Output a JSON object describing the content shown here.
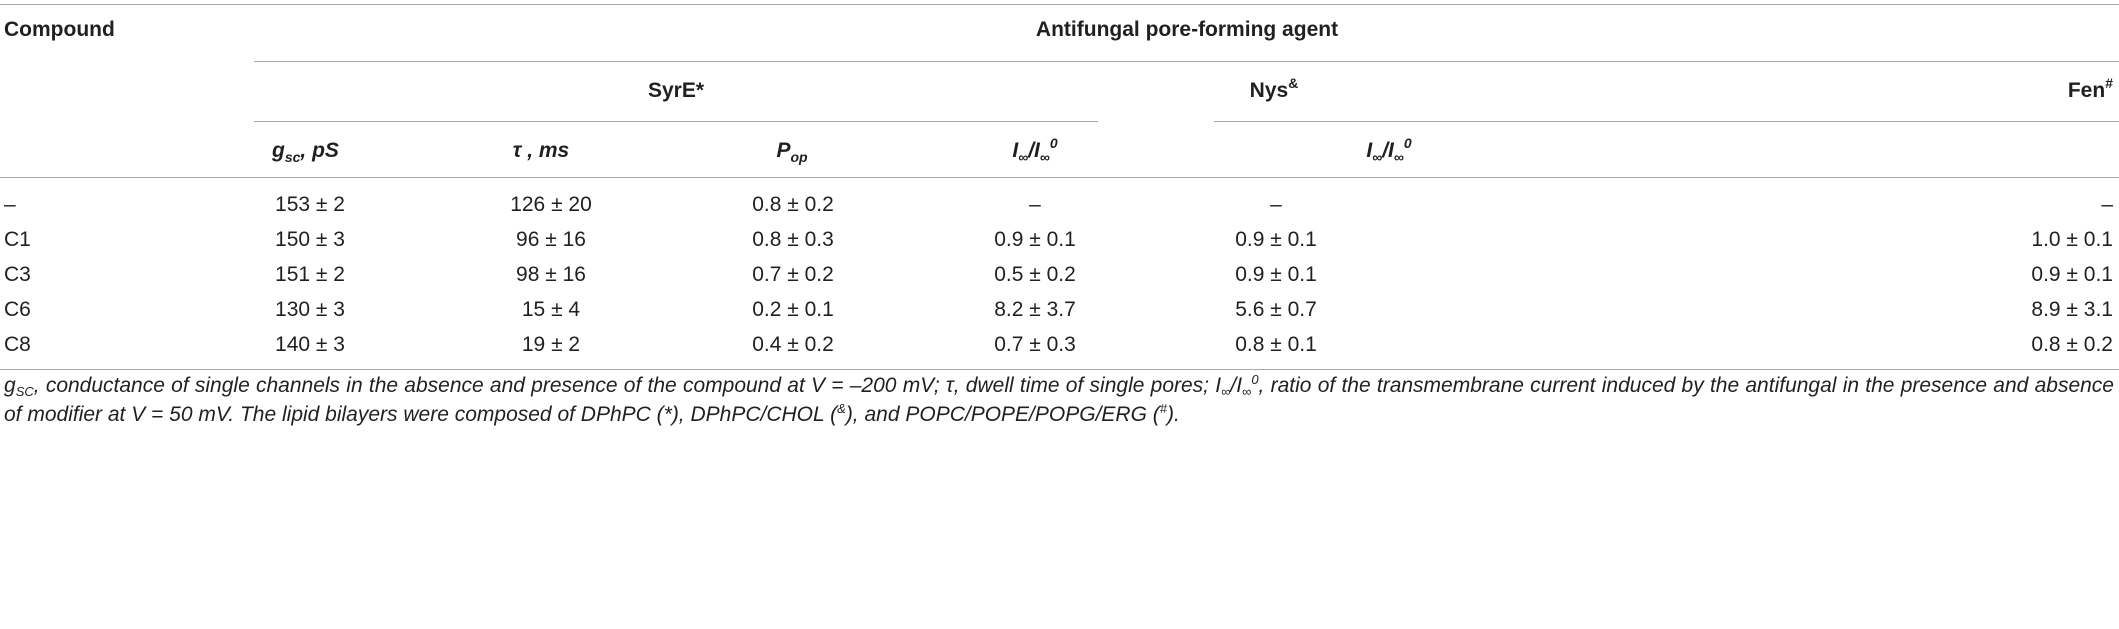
{
  "headers": {
    "compound": "Compound",
    "group": "Antifungal pore-forming agent",
    "syre": "SyrE*",
    "nys": "Nys",
    "nys_sup": "&",
    "fen": "Fen",
    "fen_sup": "#",
    "gsc_main": "g",
    "gsc_sub": "sc",
    "gsc_unit": ", pS",
    "tau": "τ , ms",
    "pop_main": "P",
    "pop_sub": "op",
    "ratio_main": "I",
    "ratio_sub1": "∞",
    "ratio_slash": "/I",
    "ratio_sub2": "∞",
    "ratio_sup": "0"
  },
  "rows": [
    {
      "compound": "–",
      "gsc": "153 ± 2",
      "tau": "126 ± 20",
      "pop": "0.8 ± 0.2",
      "syre_ratio": "–",
      "nys_ratio": "–",
      "fen_ratio": "–"
    },
    {
      "compound": "C1",
      "gsc": "150 ± 3",
      "tau": "96 ± 16",
      "pop": "0.8 ± 0.3",
      "syre_ratio": "0.9 ± 0.1",
      "nys_ratio": "0.9 ± 0.1",
      "fen_ratio": "1.0 ± 0.1"
    },
    {
      "compound": "C3",
      "gsc": "151 ± 2",
      "tau": "98 ± 16",
      "pop": "0.7 ± 0.2",
      "syre_ratio": "0.5 ± 0.2",
      "nys_ratio": "0.9 ± 0.1",
      "fen_ratio": "0.9 ± 0.1"
    },
    {
      "compound": "C6",
      "gsc": "130 ± 3",
      "tau": "15 ± 4",
      "pop": "0.2 ± 0.1",
      "syre_ratio": "8.2 ± 3.7",
      "nys_ratio": "5.6 ± 0.7",
      "fen_ratio": "8.9 ± 3.1"
    },
    {
      "compound": "C8",
      "gsc": "140 ± 3",
      "tau": "19 ± 2",
      "pop": "0.4 ± 0.2",
      "syre_ratio": "0.7 ± 0.3",
      "nys_ratio": "0.8 ± 0.1",
      "fen_ratio": "0.8 ± 0.2"
    }
  ],
  "caption": {
    "g": "g",
    "g_sub": "SC",
    "p1": ", conductance of single channels in the absence and presence of the compound at V = –200 mV; τ, dwell time of single pores; I",
    "inf1": "∞",
    "slash": "/I",
    "inf2": "∞",
    "zero": "0",
    "p2": ", ratio of the transmembrane current induced by the antifungal in the presence and absence of modifier at V = 50 mV. The lipid bilayers were composed of DPhPC (*), DPhPC/CHOL (",
    "amp": "&",
    "p3": "), and POPC/POPE/POPG/ERG (",
    "hash": "#",
    "p4": ")."
  }
}
